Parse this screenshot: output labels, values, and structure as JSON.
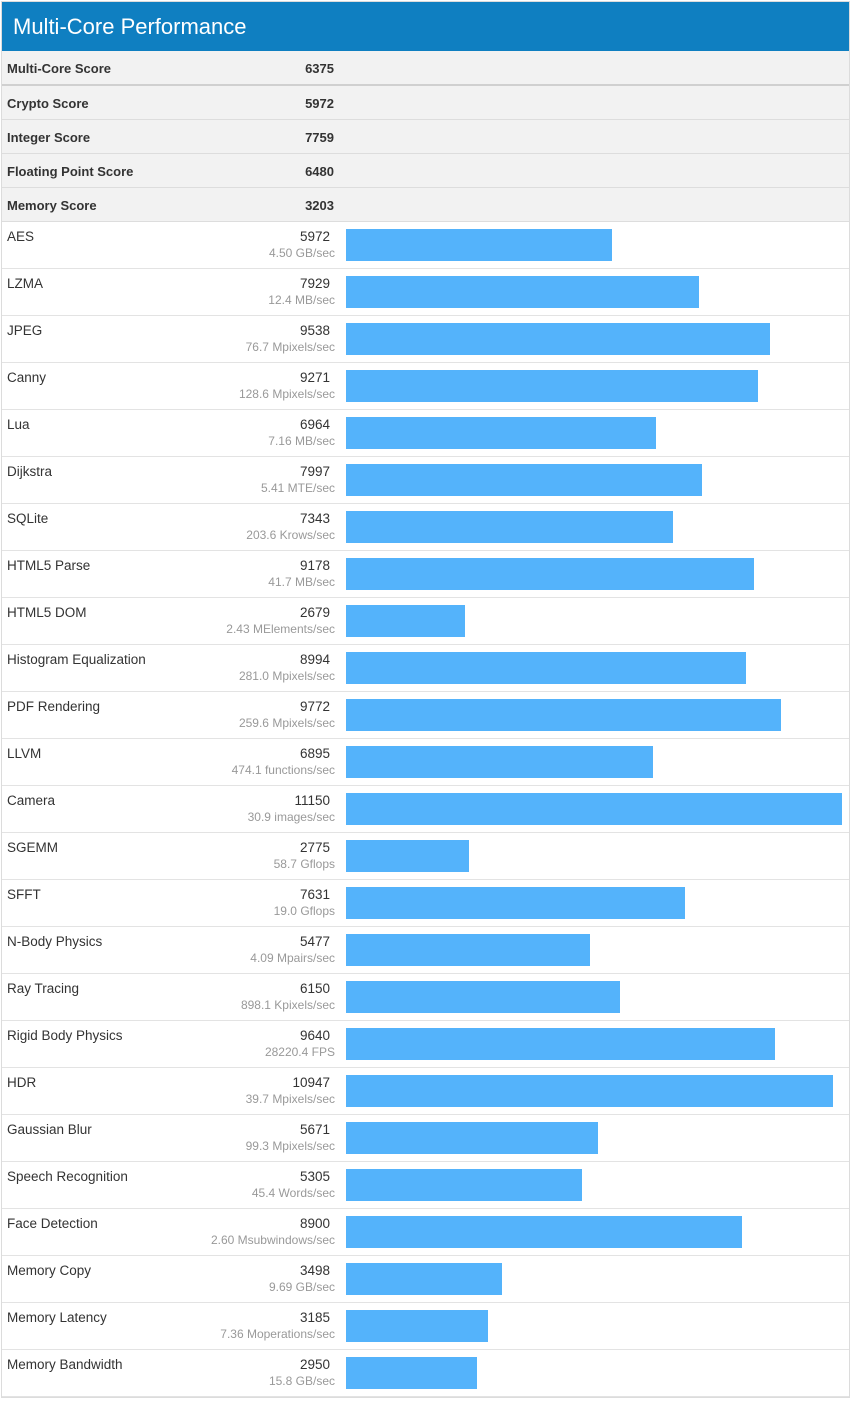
{
  "title": "Multi-Core Performance",
  "bar_color": "#54b3fb",
  "header_color": "#0f7fc1",
  "summary": [
    {
      "label": "Multi-Core Score",
      "value": "6375"
    },
    {
      "label": "Crypto Score",
      "value": "5972"
    },
    {
      "label": "Integer Score",
      "value": "7759"
    },
    {
      "label": "Floating Point Score",
      "value": "6480"
    },
    {
      "label": "Memory Score",
      "value": "3203"
    }
  ],
  "chart_data": {
    "type": "bar",
    "categories": [
      "AES",
      "LZMA",
      "JPEG",
      "Canny",
      "Lua",
      "Dijkstra",
      "SQLite",
      "HTML5 Parse",
      "HTML5 DOM",
      "Histogram Equalization",
      "PDF Rendering",
      "LLVM",
      "Camera",
      "SGEMM",
      "SFFT",
      "N-Body Physics",
      "Ray Tracing",
      "Rigid Body Physics",
      "HDR",
      "Gaussian Blur",
      "Speech Recognition",
      "Face Detection",
      "Memory Copy",
      "Memory Latency",
      "Memory Bandwidth"
    ],
    "values": [
      5972,
      7929,
      9538,
      9271,
      6964,
      7997,
      7343,
      9178,
      2679,
      8994,
      9772,
      6895,
      11150,
      2775,
      7631,
      5477,
      6150,
      9640,
      10947,
      5671,
      5305,
      8900,
      3498,
      3185,
      2950
    ],
    "rates": [
      "4.50 GB/sec",
      "12.4 MB/sec",
      "76.7 Mpixels/sec",
      "128.6 Mpixels/sec",
      "7.16 MB/sec",
      "5.41 MTE/sec",
      "203.6 Krows/sec",
      "41.7 MB/sec",
      "2.43 MElements/sec",
      "281.0 Mpixels/sec",
      "259.6 Mpixels/sec",
      "474.1 functions/sec",
      "30.9 images/sec",
      "58.7 Gflops",
      "19.0 Gflops",
      "4.09 Mpairs/sec",
      "898.1 Kpixels/sec",
      "28220.4 FPS",
      "39.7 Mpixels/sec",
      "99.3 Mpixels/sec",
      "45.4 Words/sec",
      "2.60 Msubwindows/sec",
      "9.69 GB/sec",
      "7.36 Moperations/sec",
      "15.8 GB/sec"
    ],
    "xlim": [
      0,
      11150
    ],
    "grid": false
  }
}
